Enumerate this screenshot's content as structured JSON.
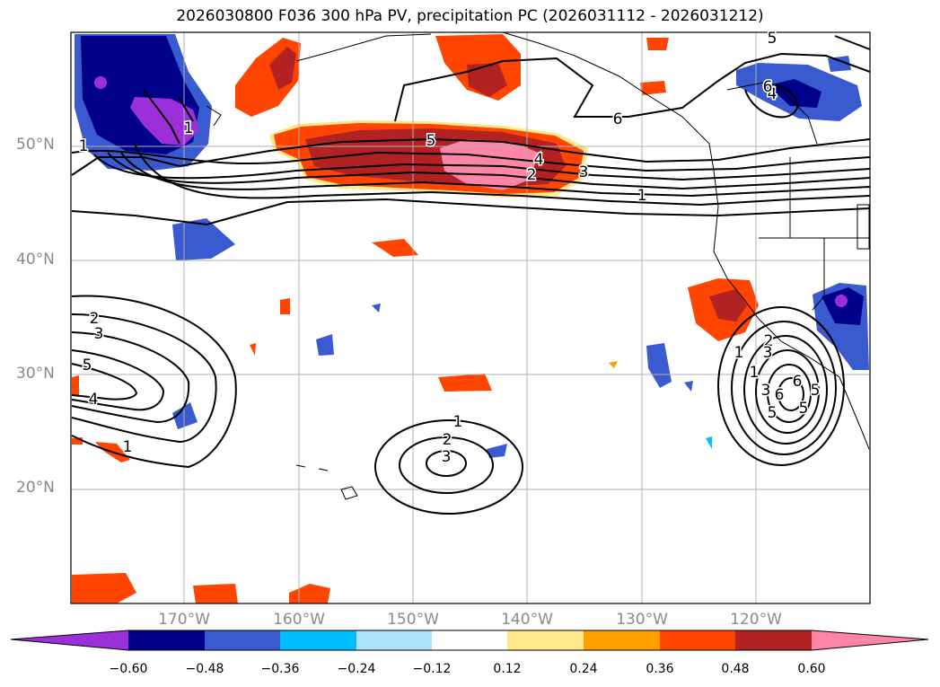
{
  "title": "2026030800 F036 300 hPa PV, precipitation PC (2026031112 - 2026031212)",
  "lat_labels": [
    "50°N",
    "40°N",
    "30°N",
    "20°N"
  ],
  "lon_labels": [
    "170°W",
    "160°W",
    "150°W",
    "140°W",
    "130°W",
    "120°W"
  ],
  "colorbar": {
    "tick_labels": [
      "−0.60",
      "−0.48",
      "−0.36",
      "−0.24",
      "−0.12",
      "0.12",
      "0.24",
      "0.36",
      "0.48",
      "0.60"
    ],
    "colors": [
      "#9b30d9",
      "#00008b",
      "#3a5bd0",
      "#00bfff",
      "#aee3fa",
      "#ffffff",
      "#ffe98a",
      "#ffa000",
      "#ff4500",
      "#b22222",
      "#ff85a8"
    ]
  },
  "contour_labels": [
    "1",
    "2",
    "3",
    "4",
    "5",
    "6",
    "1",
    "2",
    "3",
    "4",
    "5",
    "1",
    "2",
    "3",
    "5",
    "4",
    "1",
    "1",
    "2",
    "3",
    "1",
    "3",
    "6",
    "5",
    "6",
    "5",
    "6",
    "1",
    "5"
  ],
  "colors": {
    "gridline": "#b0b0b0",
    "coast": "#000000",
    "contour": "#000000"
  }
}
